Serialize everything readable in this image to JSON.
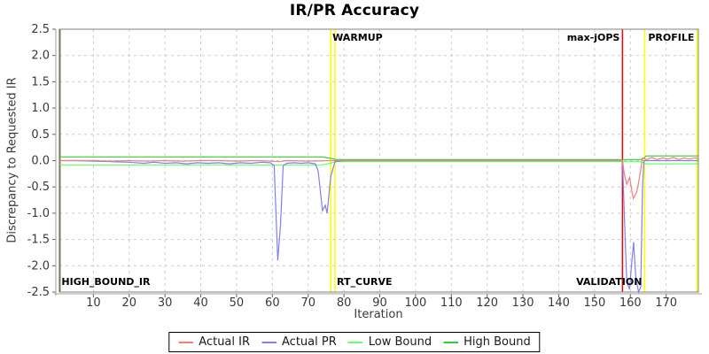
{
  "title": "IR/PR Accuracy",
  "chart_data": {
    "type": "line",
    "title": "IR/PR Accuracy",
    "xlabel": "Iteration",
    "ylabel": "Discrepancy to Requested IR",
    "xlim": [
      0.5,
      179
    ],
    "ylim": [
      -2.5,
      2.5
    ],
    "xticks": [
      10,
      20,
      30,
      40,
      50,
      60,
      70,
      80,
      90,
      100,
      110,
      120,
      130,
      140,
      150,
      160,
      170
    ],
    "yticks": [
      2.5,
      2.0,
      1.5,
      1.0,
      0.5,
      0.0,
      -0.5,
      -1.0,
      -1.5,
      -2.0,
      -2.5
    ],
    "grid": true,
    "legend_position": "bottom-center",
    "series": [
      {
        "name": "Actual IR",
        "color": "#f08080",
        "points": [
          [
            0.5,
            0
          ],
          [
            5,
            0
          ],
          [
            10,
            0
          ],
          [
            15,
            -0.01
          ],
          [
            20,
            0
          ],
          [
            25,
            -0.01
          ],
          [
            30,
            0
          ],
          [
            35,
            -0.01
          ],
          [
            40,
            0
          ],
          [
            45,
            0
          ],
          [
            50,
            -0.01
          ],
          [
            55,
            0
          ],
          [
            60,
            -0.01
          ],
          [
            62,
            -0.02
          ],
          [
            64,
            0
          ],
          [
            70,
            -0.01
          ],
          [
            76,
            0
          ],
          [
            78,
            0
          ],
          [
            85,
            0
          ],
          [
            95,
            0
          ],
          [
            105,
            0
          ],
          [
            115,
            0
          ],
          [
            125,
            0
          ],
          [
            135,
            0
          ],
          [
            145,
            0
          ],
          [
            155,
            0
          ],
          [
            157.8,
            0
          ],
          [
            158.3,
            -0.25
          ],
          [
            159,
            -0.45
          ],
          [
            159.8,
            -0.32
          ],
          [
            160.8,
            -0.72
          ],
          [
            161.8,
            -0.6
          ],
          [
            162.6,
            -0.3
          ],
          [
            163.4,
            0.05
          ],
          [
            164.5,
            0.02
          ],
          [
            166,
            0.06
          ],
          [
            167.5,
            0.02
          ],
          [
            169,
            0.05
          ],
          [
            170.5,
            0.03
          ],
          [
            172,
            0.06
          ],
          [
            173.5,
            0.02
          ],
          [
            175,
            0.05
          ],
          [
            176.5,
            0.03
          ],
          [
            178,
            0.05
          ],
          [
            179,
            0.04
          ]
        ]
      },
      {
        "name": "Actual PR",
        "color": "#8080f0",
        "points": [
          [
            0.5,
            0
          ],
          [
            5,
            0
          ],
          [
            10,
            -0.01
          ],
          [
            15,
            -0.02
          ],
          [
            20,
            -0.03
          ],
          [
            24,
            -0.05
          ],
          [
            27,
            -0.03
          ],
          [
            30,
            -0.05
          ],
          [
            33,
            -0.04
          ],
          [
            36,
            -0.06
          ],
          [
            39,
            -0.04
          ],
          [
            42,
            -0.05
          ],
          [
            45,
            -0.04
          ],
          [
            48,
            -0.06
          ],
          [
            51,
            -0.04
          ],
          [
            54,
            -0.05
          ],
          [
            57,
            -0.03
          ],
          [
            59.5,
            -0.04
          ],
          [
            60.5,
            -0.1
          ],
          [
            61.5,
            -1.9
          ],
          [
            62.3,
            -1.2
          ],
          [
            63,
            -0.1
          ],
          [
            64,
            -0.05
          ],
          [
            66,
            -0.04
          ],
          [
            68,
            -0.05
          ],
          [
            70,
            -0.04
          ],
          [
            72,
            -0.06
          ],
          [
            72.8,
            -0.2
          ],
          [
            74,
            -0.95
          ],
          [
            74.8,
            -0.85
          ],
          [
            75.3,
            -1.0
          ],
          [
            76.3,
            -0.3
          ],
          [
            77.5,
            -0.02
          ],
          [
            80,
            0
          ],
          [
            90,
            0
          ],
          [
            100,
            0
          ],
          [
            110,
            0
          ],
          [
            120,
            0
          ],
          [
            130,
            0
          ],
          [
            140,
            0
          ],
          [
            150,
            0
          ],
          [
            157.8,
            0
          ],
          [
            158.3,
            -1.0
          ],
          [
            159,
            -2.3
          ],
          [
            159.8,
            -2.45
          ],
          [
            160.3,
            -2.0
          ],
          [
            160.9,
            -1.55
          ],
          [
            161.5,
            -2.2
          ],
          [
            162.3,
            -2.5
          ],
          [
            162.9,
            -2.4
          ],
          [
            163.4,
            -0.5
          ],
          [
            163.8,
            0
          ],
          [
            165,
            0
          ],
          [
            170,
            0
          ],
          [
            175,
            0
          ],
          [
            179,
            0
          ]
        ]
      },
      {
        "name": "Low Bound",
        "color": "#66ff66",
        "points": [
          [
            0.5,
            -0.08
          ],
          [
            10,
            -0.08
          ],
          [
            20,
            -0.08
          ],
          [
            30,
            -0.08
          ],
          [
            40,
            -0.08
          ],
          [
            50,
            -0.08
          ],
          [
            60,
            -0.08
          ],
          [
            70,
            -0.08
          ],
          [
            74,
            -0.08
          ],
          [
            76.5,
            -0.04
          ],
          [
            78,
            -0.02
          ],
          [
            90,
            -0.02
          ],
          [
            110,
            -0.02
          ],
          [
            130,
            -0.02
          ],
          [
            150,
            -0.02
          ],
          [
            163,
            -0.02
          ],
          [
            163.8,
            -0.04
          ],
          [
            164.5,
            -0.06
          ],
          [
            170,
            -0.06
          ],
          [
            175,
            -0.06
          ],
          [
            179,
            -0.06
          ]
        ]
      },
      {
        "name": "High Bound",
        "color": "#33cc33",
        "points": [
          [
            0.5,
            0.07
          ],
          [
            10,
            0.07
          ],
          [
            20,
            0.07
          ],
          [
            30,
            0.07
          ],
          [
            40,
            0.07
          ],
          [
            50,
            0.07
          ],
          [
            60,
            0.07
          ],
          [
            70,
            0.07
          ],
          [
            74,
            0.07
          ],
          [
            76.5,
            0.04
          ],
          [
            78,
            0.02
          ],
          [
            90,
            0.02
          ],
          [
            110,
            0.02
          ],
          [
            130,
            0.02
          ],
          [
            150,
            0.02
          ],
          [
            163,
            0.02
          ],
          [
            163.8,
            0.05
          ],
          [
            164.5,
            0.09
          ],
          [
            170,
            0.09
          ],
          [
            175,
            0.09
          ],
          [
            179,
            0.09
          ]
        ]
      }
    ],
    "markers": [
      {
        "x": 0.6,
        "color": "#6e6e28",
        "width": 2,
        "label": "HIGH_BOUND_IR",
        "label_pos": "bottom",
        "align": "left"
      },
      {
        "x": 76.3,
        "color": "#ffff00",
        "width": 1.5,
        "label": "WARMUP",
        "label_pos": "top",
        "align": "left"
      },
      {
        "x": 77.5,
        "color": "#ffff00",
        "width": 1.5,
        "label": "RT_CURVE",
        "label_pos": "bottom",
        "align": "left"
      },
      {
        "x": 157.8,
        "color": "#ee0000",
        "width": 1.5,
        "label": "max-jOPS",
        "label_pos": "top",
        "align": "right"
      },
      {
        "x": 164,
        "color": "#ffff00",
        "width": 1.5,
        "label": "VALIDATION",
        "label_pos": "bottom",
        "align": "right"
      },
      {
        "x": 178.6,
        "color": "#ffff00",
        "width": 1.5,
        "label": "PROFILE",
        "label_pos": "top",
        "align": "right"
      }
    ]
  },
  "legend": {
    "items": [
      {
        "label": "Actual IR",
        "color": "#f08080"
      },
      {
        "label": "Actual PR",
        "color": "#8080f0"
      },
      {
        "label": "Low Bound",
        "color": "#66ff66"
      },
      {
        "label": "High Bound",
        "color": "#33cc33"
      }
    ]
  }
}
